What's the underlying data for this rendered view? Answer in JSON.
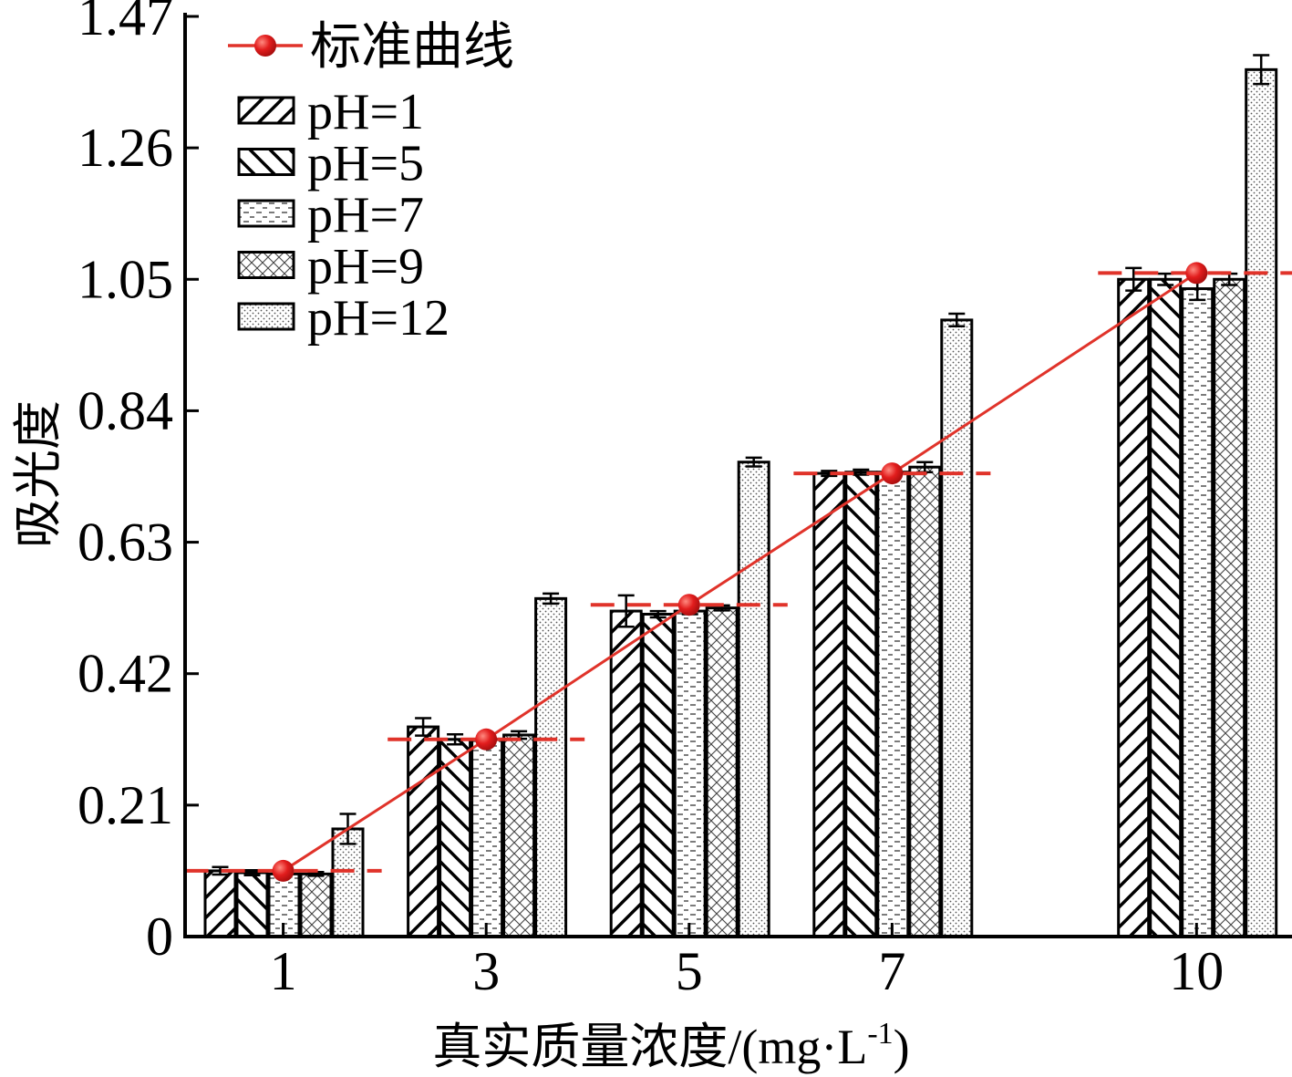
{
  "chart_data": {
    "type": "bar",
    "xlabel_main": "真实质量浓度/(mg·L",
    "xlabel_sup": "-1",
    "xlabel_close": ")",
    "ylabel": "吸光度",
    "ylim": [
      0,
      1.47
    ],
    "yticks": [
      "0",
      "0.21",
      "0.42",
      "0.63",
      "0.84",
      "1.05",
      "1.26",
      "1.47"
    ],
    "x": [
      1,
      3,
      5,
      7,
      10
    ],
    "categories": [
      "1",
      "3",
      "5",
      "7",
      "10"
    ],
    "series": [
      {
        "name": "pH=1",
        "pattern": "diag-up",
        "values": [
          0.105,
          0.335,
          0.52,
          0.74,
          1.05
        ],
        "errors": [
          0.006,
          0.014,
          0.025,
          0.004,
          0.018
        ]
      },
      {
        "name": "pH=5",
        "pattern": "diag-down",
        "values": [
          0.102,
          0.315,
          0.515,
          0.742,
          1.05
        ],
        "errors": [
          0.004,
          0.008,
          0.005,
          0.004,
          0.009
        ]
      },
      {
        "name": "pH=7",
        "pattern": "dashes",
        "values": [
          0.1,
          0.315,
          0.52,
          0.742,
          1.035
        ],
        "errors": [
          0.004,
          0.006,
          0.005,
          0.004,
          0.018
        ]
      },
      {
        "name": "pH=9",
        "pattern": "crosshatch",
        "values": [
          0.1,
          0.322,
          0.525,
          0.75,
          1.05
        ],
        "errors": [
          0.003,
          0.006,
          0.004,
          0.008,
          0.009
        ]
      },
      {
        "name": "pH=12",
        "pattern": "dots",
        "values": [
          0.172,
          0.54,
          0.758,
          0.985,
          1.385
        ],
        "errors": [
          0.024,
          0.008,
          0.007,
          0.01,
          0.023
        ]
      }
    ],
    "standard_curve": {
      "name": "标准曲线",
      "values": [
        0.105,
        0.315,
        0.53,
        0.74,
        1.06
      ]
    },
    "grid": false,
    "legend_position": "top-left",
    "colors": {
      "curve": "#e0332a",
      "marker": "#e21d1d",
      "bar_stroke": "#000000"
    }
  }
}
